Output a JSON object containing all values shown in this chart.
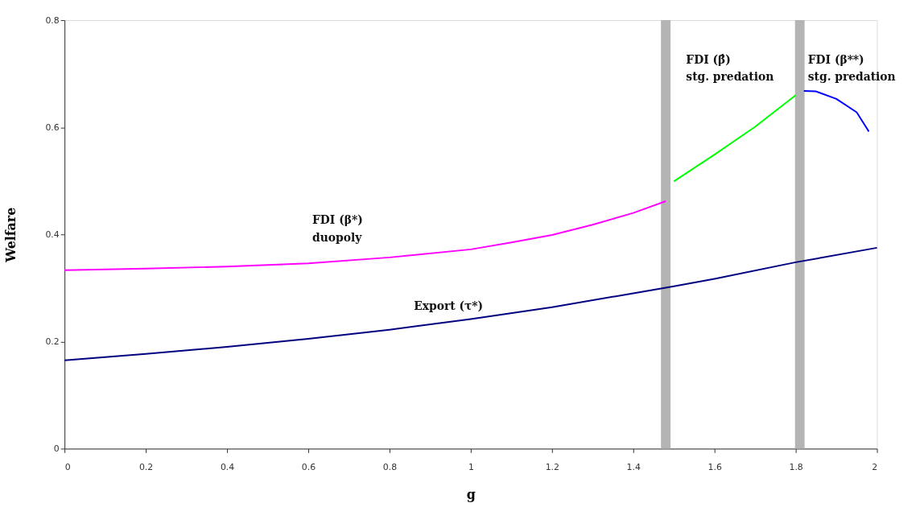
{
  "chart_data": {
    "type": "line",
    "xlabel": "g",
    "ylabel": "Welfare",
    "xlim": [
      0,
      2
    ],
    "xticks": [
      0,
      0.2,
      0.4,
      0.6,
      0.8,
      1,
      1.2,
      1.4,
      1.6,
      1.8,
      2
    ],
    "ylim": [
      0,
      0.8
    ],
    "yticks": [
      0,
      0.2,
      0.4,
      0.6,
      0.8
    ],
    "grid": false,
    "line_style": "solid",
    "marker": "none",
    "series": [
      {
        "color": "#ff00ff",
        "x": [
          0,
          0.2,
          0.4,
          0.6,
          0.8,
          1.0,
          1.1,
          1.2,
          1.3,
          1.4,
          1.48
        ],
        "values": [
          0.333,
          0.336,
          0.34,
          0.346,
          0.357,
          0.372,
          0.385,
          0.399,
          0.418,
          0.44,
          0.462
        ]
      },
      {
        "color": "#00ff00",
        "x": [
          1.5,
          1.6,
          1.7,
          1.8
        ],
        "values": [
          0.499,
          0.549,
          0.601,
          0.66
        ]
      },
      {
        "color": "#0000ff",
        "x": [
          1.82,
          1.85,
          1.9,
          1.95,
          1.98
        ],
        "values": [
          0.668,
          0.667,
          0.653,
          0.628,
          0.592
        ]
      },
      {
        "color": "#000080",
        "x": [
          0,
          0.2,
          0.4,
          0.6,
          0.8,
          1.0,
          1.2,
          1.4,
          1.5,
          1.6,
          1.8,
          2.0
        ],
        "values": [
          0.165,
          0.177,
          0.19,
          0.205,
          0.222,
          0.242,
          0.264,
          0.29,
          0.303,
          0.317,
          0.348,
          0.375
        ]
      }
    ],
    "ref_lines": [
      {
        "axis": "x",
        "value": 1.48,
        "color": "#b4b4b4"
      },
      {
        "axis": "x",
        "value": 1.81,
        "color": "#b4b4b4"
      }
    ],
    "annotations": [
      "FDI (β*)\nduopoly",
      "Export (τ*)",
      "FDI (β̂)\nstg. predation",
      "FDI (β**)\nstg. predation"
    ]
  }
}
